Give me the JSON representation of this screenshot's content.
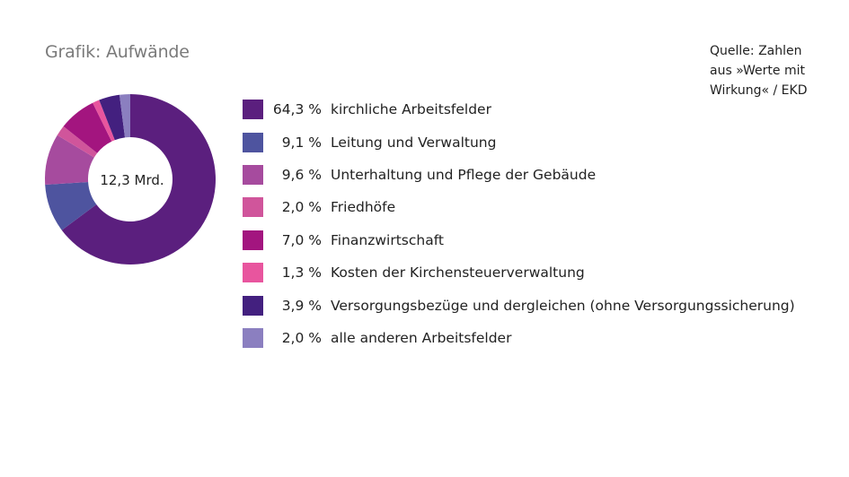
{
  "title": "Grafik: Aufwände",
  "source": {
    "lines": [
      "Quelle: Zahlen",
      "aus »Werte mit",
      "Wirkung« / EKD"
    ]
  },
  "chart_data": {
    "type": "pie",
    "variant": "donut",
    "center_label": "12,3 Mrd.",
    "categories": [
      "kirchliche Arbeitsfelder",
      "Leitung und Verwaltung",
      "Unterhaltung und Pflege der Gebäude",
      "Friedhöfe",
      "Finanzwirtschaft",
      "Kosten der Kirchensteuerverwaltung",
      "Versorgungsbezüge und dergleichen (ohne Versorgungssicherung)",
      "alle anderen Arbeitsfelder"
    ],
    "values": [
      64.3,
      9.1,
      9.6,
      2.0,
      7.0,
      1.3,
      3.9,
      2.0
    ],
    "value_labels": [
      "64,3 %",
      "9,1 %",
      "9,6 %",
      "2,0 %",
      "7,0 %",
      "1,3 %",
      "3,9 %",
      "2,0 %"
    ],
    "colors": [
      "#5b1f7e",
      "#4e549f",
      "#a64b9e",
      "#d0559b",
      "#a3157f",
      "#e8559e",
      "#43207f",
      "#8b7fc0"
    ],
    "legend_position": "right"
  }
}
